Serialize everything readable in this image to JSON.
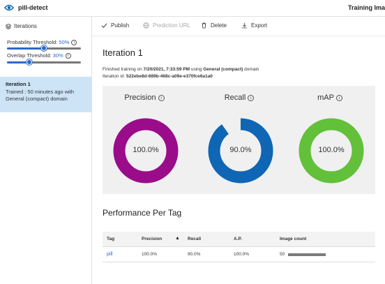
{
  "topbar": {
    "app_title": "pill-detect",
    "right_title": "Training Ima"
  },
  "sidebar": {
    "header": "Iterations",
    "probability_label": "Probability Threshold:",
    "probability_value": "50%",
    "probability_level": 0.5,
    "overlap_label": "Overlap Threshold:",
    "overlap_value": "30%",
    "overlap_level": 0.3,
    "iteration": {
      "title": "Iteration 1",
      "subtitle": "Trained : 50 minutes ago with General (compact) domain"
    }
  },
  "toolbar": {
    "publish": "Publish",
    "prediction_url": "Prediction URL",
    "delete": "Delete",
    "export": "Export"
  },
  "main": {
    "iteration_title": "Iteration 1",
    "meta_prefix": "Finished training on ",
    "meta_date": "7/20/2021, 7:33:59 PM",
    "meta_mid": " using ",
    "meta_domain": "General (compact)",
    "meta_suffix": " domain",
    "iteration_id_label": "Iteration id: ",
    "iteration_id": "522ebe8d-689b-468c-a09e-e370fce6a1a0"
  },
  "metrics": [
    {
      "label": "Precision",
      "value_text": "100.0%",
      "value": 100.0,
      "color": "#9b0c8a"
    },
    {
      "label": "Recall",
      "value_text": "90.0%",
      "value": 90.0,
      "color": "#0f66b4"
    },
    {
      "label": "mAP",
      "value_text": "100.0%",
      "value": 100.0,
      "color": "#62c03a"
    }
  ],
  "performance": {
    "title": "Performance Per Tag",
    "columns": [
      "Tag",
      "Precision",
      "Recall",
      "A.P.",
      "Image count"
    ],
    "rows": [
      {
        "tag": "pill",
        "precision": "100.0%",
        "recall": "90.0%",
        "ap": "100.0%",
        "image_count": "50"
      }
    ]
  },
  "colors": {
    "accent": "#2e68c8",
    "selected_bg": "#cde4f7",
    "panel_bg": "#f0f0f0"
  }
}
